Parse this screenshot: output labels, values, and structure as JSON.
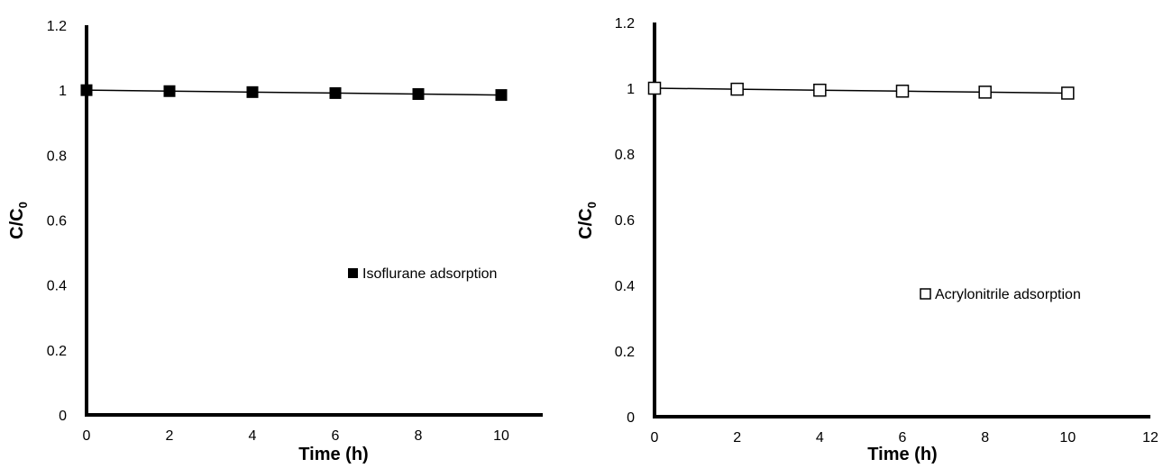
{
  "chart_data": [
    {
      "type": "scatter",
      "title": "",
      "xlabel": "Time (h)",
      "ylabel_main": "C/C",
      "ylabel_sub": "0",
      "xlim": [
        0,
        11
      ],
      "ylim": [
        0,
        1.2
      ],
      "x_ticks": [
        "0",
        "2",
        "4",
        "6",
        "8",
        "10"
      ],
      "y_ticks": [
        "0",
        "0.2",
        "0.4",
        "0.6",
        "0.8",
        "1",
        "1.2"
      ],
      "grid": false,
      "legend_position": "right",
      "series": [
        {
          "name": "Isoflurane adsorption",
          "marker": "filled-square",
          "color": "#000000",
          "x": [
            0,
            2,
            4,
            6,
            8,
            10
          ],
          "y": [
            1.0,
            0.997,
            0.994,
            0.991,
            0.988,
            0.985
          ]
        }
      ]
    },
    {
      "type": "scatter",
      "title": "",
      "xlabel": "Time (h)",
      "ylabel_main": "C/C",
      "ylabel_sub": "0",
      "xlim": [
        0,
        12
      ],
      "ylim": [
        0,
        1.2
      ],
      "x_ticks": [
        "0",
        "2",
        "4",
        "6",
        "8",
        "10",
        "12"
      ],
      "y_ticks": [
        "0",
        "0.2",
        "0.4",
        "0.6",
        "0.8",
        "1",
        "1.2"
      ],
      "grid": false,
      "legend_position": "right",
      "series": [
        {
          "name": "Acrylonitrile adsorption",
          "marker": "open-square",
          "color": "#000000",
          "x": [
            0,
            2,
            4,
            6,
            8,
            10
          ],
          "y": [
            1.0,
            0.997,
            0.994,
            0.991,
            0.988,
            0.985
          ]
        }
      ]
    }
  ]
}
